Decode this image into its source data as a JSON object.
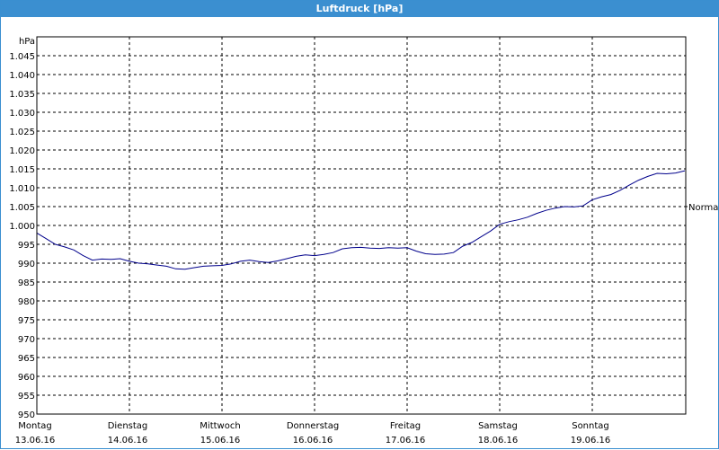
{
  "window": {
    "title": "Luftdruck [hPa]"
  },
  "chart_data": {
    "type": "line",
    "title": "Luftdruck [hPa]",
    "y_unit_label": "hPa",
    "ylim": [
      950,
      1050
    ],
    "y_ticks": [
      {
        "value": 1045,
        "label": "1.045"
      },
      {
        "value": 1040,
        "label": "1.040"
      },
      {
        "value": 1035,
        "label": "1.035"
      },
      {
        "value": 1030,
        "label": "1.030"
      },
      {
        "value": 1025,
        "label": "1.025"
      },
      {
        "value": 1020,
        "label": "1.020"
      },
      {
        "value": 1015,
        "label": "1.015"
      },
      {
        "value": 1010,
        "label": "1.010"
      },
      {
        "value": 1005,
        "label": "1.005"
      },
      {
        "value": 1000,
        "label": "1.000"
      },
      {
        "value": 995,
        "label": "995"
      },
      {
        "value": 990,
        "label": "990"
      },
      {
        "value": 985,
        "label": "985"
      },
      {
        "value": 980,
        "label": "980"
      },
      {
        "value": 975,
        "label": "975"
      },
      {
        "value": 970,
        "label": "970"
      },
      {
        "value": 965,
        "label": "965"
      },
      {
        "value": 960,
        "label": "960"
      },
      {
        "value": 955,
        "label": "955"
      },
      {
        "value": 950,
        "label": "950"
      }
    ],
    "x_unit": "days since 13.06.16",
    "xlim": [
      0,
      7.05
    ],
    "x_ticks": [
      {
        "value": 0,
        "day": "Montag",
        "date": "13.06.16"
      },
      {
        "value": 1,
        "day": "Dienstag",
        "date": "14.06.16"
      },
      {
        "value": 2,
        "day": "Mittwoch",
        "date": "15.06.16"
      },
      {
        "value": 3,
        "day": "Donnerstag",
        "date": "16.06.16"
      },
      {
        "value": 4,
        "day": "Freitag",
        "date": "17.06.16"
      },
      {
        "value": 5,
        "day": "Samstag",
        "date": "18.06.16"
      },
      {
        "value": 6,
        "day": "Sonntag",
        "date": "19.06.16"
      }
    ],
    "reference_line": {
      "value": 1005,
      "label": "Normal"
    },
    "grid": true,
    "series": [
      {
        "color": "#00008b",
        "x": [
          0,
          0.1,
          0.2,
          0.3,
          0.4,
          0.5,
          0.6,
          0.7,
          0.8,
          0.9,
          1.0,
          1.1,
          1.2,
          1.3,
          1.4,
          1.5,
          1.6,
          1.7,
          1.8,
          1.9,
          2.0,
          2.1,
          2.2,
          2.3,
          2.4,
          2.5,
          2.6,
          2.7,
          2.8,
          2.9,
          3.0,
          3.1,
          3.2,
          3.3,
          3.4,
          3.5,
          3.6,
          3.7,
          3.8,
          3.9,
          4.0,
          4.1,
          4.2,
          4.3,
          4.4,
          4.5,
          4.6,
          4.7,
          4.8,
          4.9,
          5.0,
          5.1,
          5.2,
          5.3,
          5.4,
          5.5,
          5.6,
          5.7,
          5.8,
          5.9,
          6.0,
          6.1,
          6.2,
          6.3,
          6.4,
          6.5,
          6.6,
          6.7,
          6.8,
          6.9,
          7.0
        ],
        "values": [
          998,
          996.5,
          995,
          994.3,
          993.5,
          992,
          990.8,
          991.1,
          991,
          991.2,
          990.5,
          990,
          989.8,
          989.5,
          989.2,
          988.5,
          988.4,
          988.8,
          989.2,
          989.3,
          989.4,
          989.8,
          990.5,
          990.8,
          990.4,
          990.2,
          990.6,
          991.2,
          991.8,
          992.2,
          992,
          992.3,
          992.8,
          993.8,
          994.1,
          994.2,
          994,
          993.9,
          994.1,
          994,
          994.1,
          993.2,
          992.5,
          992.3,
          992.4,
          992.8,
          994.5,
          995.5,
          997,
          998.5,
          1000.3,
          1001,
          1001.5,
          1002.2,
          1003.2,
          1004,
          1004.6,
          1005,
          1004.9,
          1005.2,
          1006.8,
          1007.6,
          1008.2,
          1009.3,
          1010.7,
          1012,
          1013,
          1013.8,
          1013.7,
          1013.9,
          1014.5
        ]
      }
    ]
  }
}
